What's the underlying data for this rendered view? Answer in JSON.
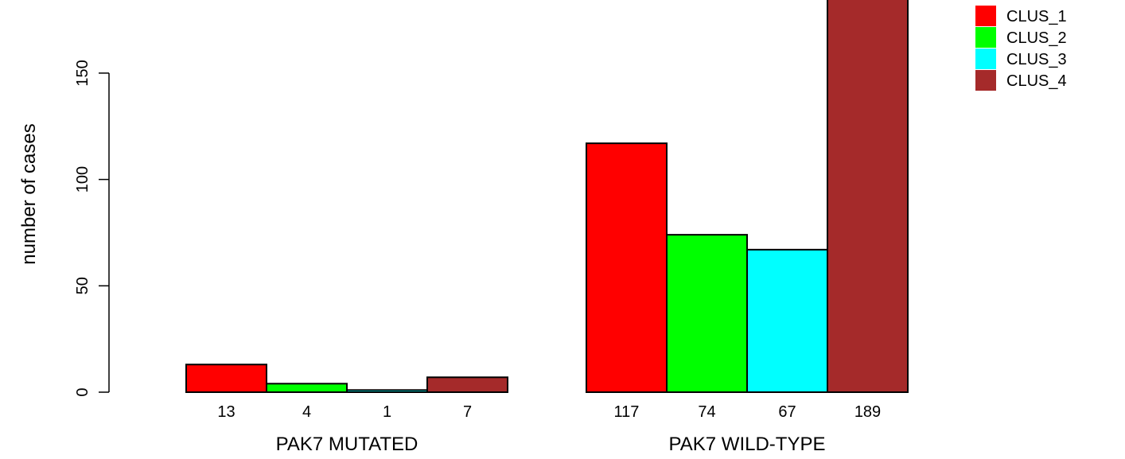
{
  "chart_data": {
    "type": "bar",
    "ylabel": "number of cases",
    "ylim": [
      0,
      189
    ],
    "yticks": [
      0,
      50,
      100,
      150
    ],
    "groups": [
      {
        "label": "PAK7 MUTATED",
        "values": [
          13,
          4,
          1,
          7
        ],
        "value_labels": [
          "13",
          "4",
          "1",
          "7"
        ]
      },
      {
        "label": "PAK7 WILD-TYPE",
        "values": [
          117,
          74,
          67,
          189
        ],
        "value_labels": [
          "117",
          "74",
          "67",
          "189"
        ]
      }
    ],
    "series": [
      {
        "name": "CLUS_1",
        "color": "#ff0000"
      },
      {
        "name": "CLUS_2",
        "color": "#00ff00"
      },
      {
        "name": "CLUS_3",
        "color": "#00ffff"
      },
      {
        "name": "CLUS_4",
        "color": "#a52a2a"
      }
    ],
    "legend_position": "top-right",
    "grid": false
  }
}
